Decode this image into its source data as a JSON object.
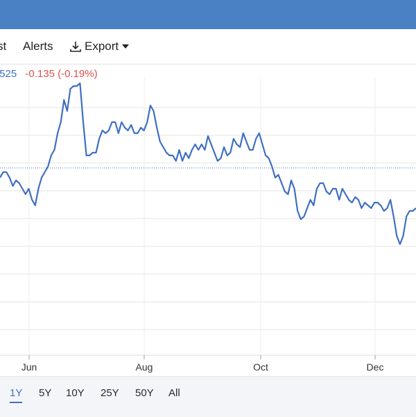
{
  "toolbar": {
    "truncated_label": "st",
    "alerts_label": "Alerts",
    "export_label": "Export",
    "download_icon": "download-icon",
    "caret_icon": "caret-down-icon"
  },
  "quote": {
    "price": ".525",
    "change": "-0.135 (-0.19%)"
  },
  "colors": {
    "header": "#4a80c4",
    "line": "#3e6fc2",
    "negative": "#d9534f",
    "grid": "#e5e5e5"
  },
  "range_buttons": [
    "1Y",
    "5Y",
    "10Y",
    "25Y",
    "50Y",
    "All"
  ],
  "active_range": "1Y",
  "chart_data": {
    "type": "line",
    "x_tick_labels": [
      "Jun",
      "Aug",
      "Oct",
      "Dec"
    ],
    "reference_line": "dotted horizontal line near current level",
    "grid": true,
    "series": [
      {
        "values": [
          64,
          66,
          66,
          64,
          61,
          63,
          62,
          60,
          58,
          60,
          56,
          54,
          60,
          64,
          66,
          68,
          72,
          74,
          80,
          84,
          92,
          88,
          96,
          97,
          97,
          98,
          84,
          72,
          72,
          73,
          73,
          78,
          81,
          80,
          81,
          84,
          84,
          80,
          84,
          82,
          81,
          83,
          80,
          80,
          82,
          81,
          84,
          90,
          88,
          82,
          77,
          75,
          73,
          72,
          72,
          70,
          74,
          70,
          73,
          71,
          74,
          76,
          74,
          76,
          74,
          79,
          76,
          73,
          70,
          71,
          75,
          72,
          73,
          78,
          76,
          75,
          80,
          77,
          74,
          74,
          78,
          80,
          76,
          72,
          71,
          68,
          64,
          65,
          62,
          59,
          58,
          63,
          60,
          52,
          49,
          50,
          53,
          56,
          54,
          60,
          62,
          62,
          59,
          58,
          60,
          60,
          56,
          60,
          58,
          56,
          55,
          57,
          56,
          53,
          55,
          54,
          53,
          55,
          55,
          54,
          52,
          53,
          56,
          50,
          43,
          40,
          43,
          50,
          52,
          52,
          53
        ]
      }
    ]
  }
}
